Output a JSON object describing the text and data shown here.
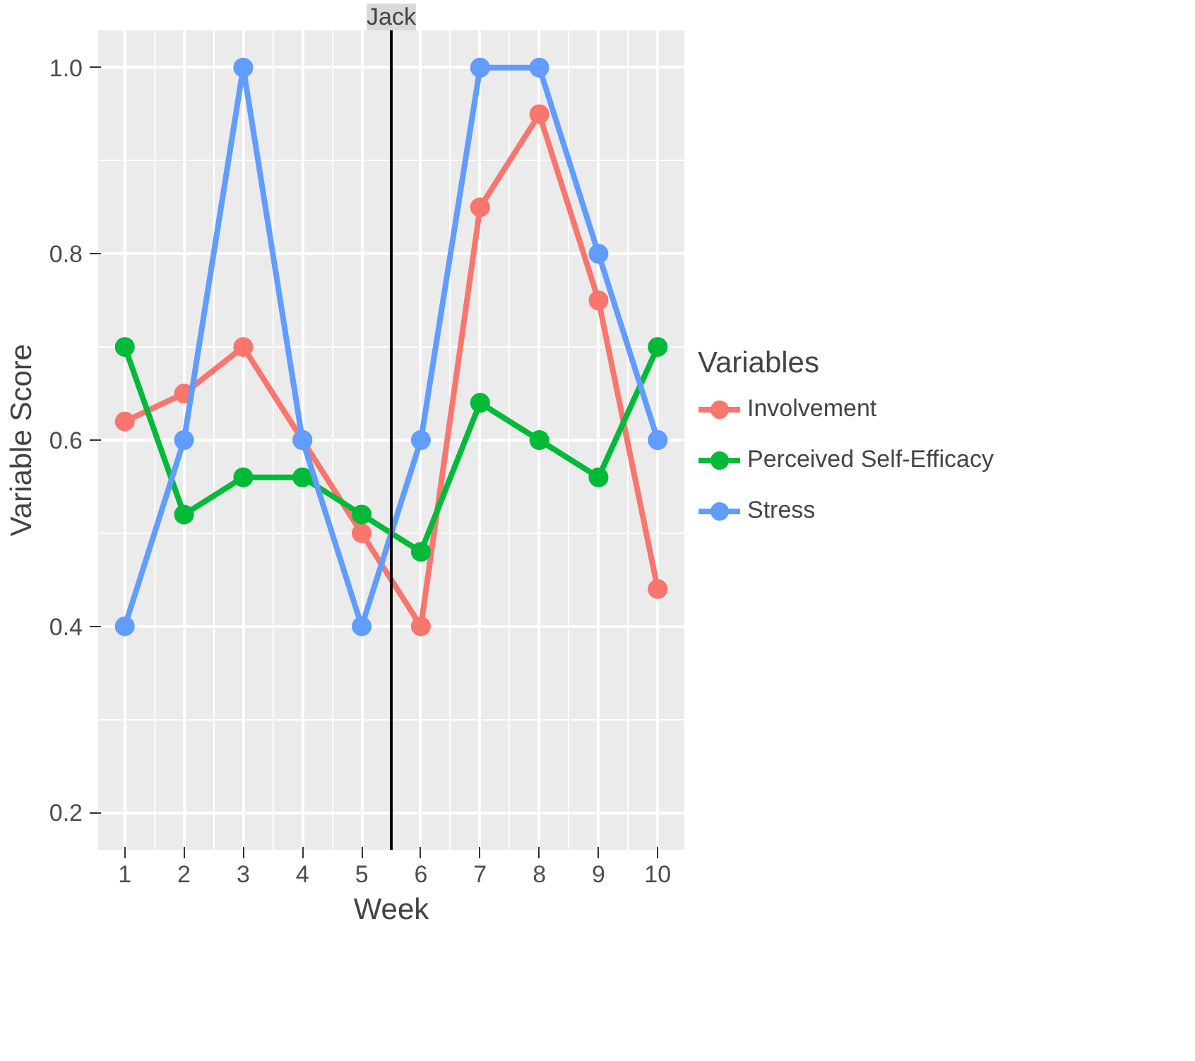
{
  "chart_data": {
    "type": "line",
    "title": "Jack",
    "xlabel": "Week",
    "ylabel": "Variable Score",
    "legend_title": "Variables",
    "x": [
      1,
      2,
      3,
      4,
      5,
      6,
      7,
      8,
      9,
      10
    ],
    "series": [
      {
        "name": "Involvement",
        "color": "#f8766d",
        "values": [
          0.62,
          0.65,
          0.7,
          0.6,
          0.5,
          0.4,
          0.85,
          0.95,
          0.75,
          0.44
        ]
      },
      {
        "name": "Perceived Self-Efficacy",
        "color": "#00ba38",
        "values": [
          0.7,
          0.52,
          0.56,
          0.56,
          0.52,
          0.48,
          0.64,
          0.6,
          0.56,
          0.7
        ]
      },
      {
        "name": "Stress",
        "color": "#619cff",
        "values": [
          0.4,
          0.6,
          1.0,
          0.6,
          0.4,
          0.6,
          1.0,
          1.0,
          0.8,
          0.6
        ]
      }
    ],
    "xlim": [
      0.55,
      10.45
    ],
    "xticks": [
      1,
      2,
      3,
      4,
      5,
      6,
      7,
      8,
      9,
      10
    ],
    "ylim": [
      0.16,
      1.04
    ],
    "yticks": [
      {
        "value": 0.2,
        "label": "0.2"
      },
      {
        "value": 0.4,
        "label": "0.4"
      },
      {
        "value": 0.6,
        "label": "0.6"
      },
      {
        "value": 0.8,
        "label": "0.8"
      },
      {
        "value": 1.0,
        "label": "1.0"
      }
    ],
    "ref_lines": [
      {
        "axis": "x",
        "value": 5.5,
        "label": null,
        "color": "#000000"
      }
    ],
    "grid": true,
    "legend": "right",
    "marker": "circle",
    "line_style": "solid"
  }
}
